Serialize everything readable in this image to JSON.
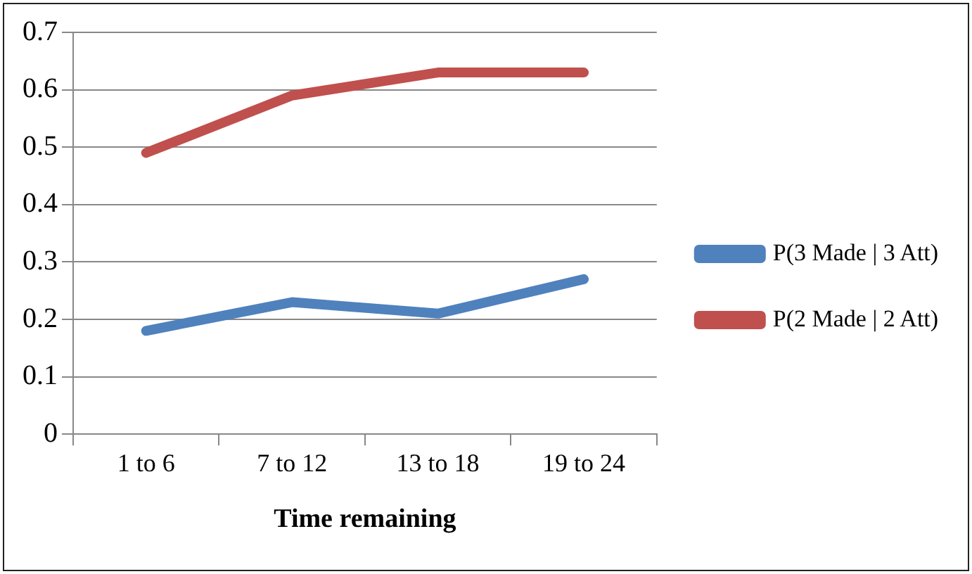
{
  "chart_data": {
    "type": "line",
    "xlabel": "Time remaining",
    "categories": [
      "1 to 6",
      "7 to 12",
      "13 to 18",
      "19 to 24"
    ],
    "series": [
      {
        "name": "P(3 Made | 3 Att)",
        "color": "#4f81bd",
        "values": [
          0.18,
          0.23,
          0.21,
          0.27
        ]
      },
      {
        "name": "P(2 Made | 2 Att)",
        "color": "#c0504d",
        "values": [
          0.49,
          0.59,
          0.63,
          0.63
        ]
      }
    ],
    "ylim": [
      0,
      0.7
    ],
    "yticks": [
      0,
      0.1,
      0.2,
      0.3,
      0.4,
      0.5,
      0.6,
      0.7
    ],
    "grid": "y",
    "legend": "right",
    "marker": "none",
    "line_style": "solid"
  }
}
